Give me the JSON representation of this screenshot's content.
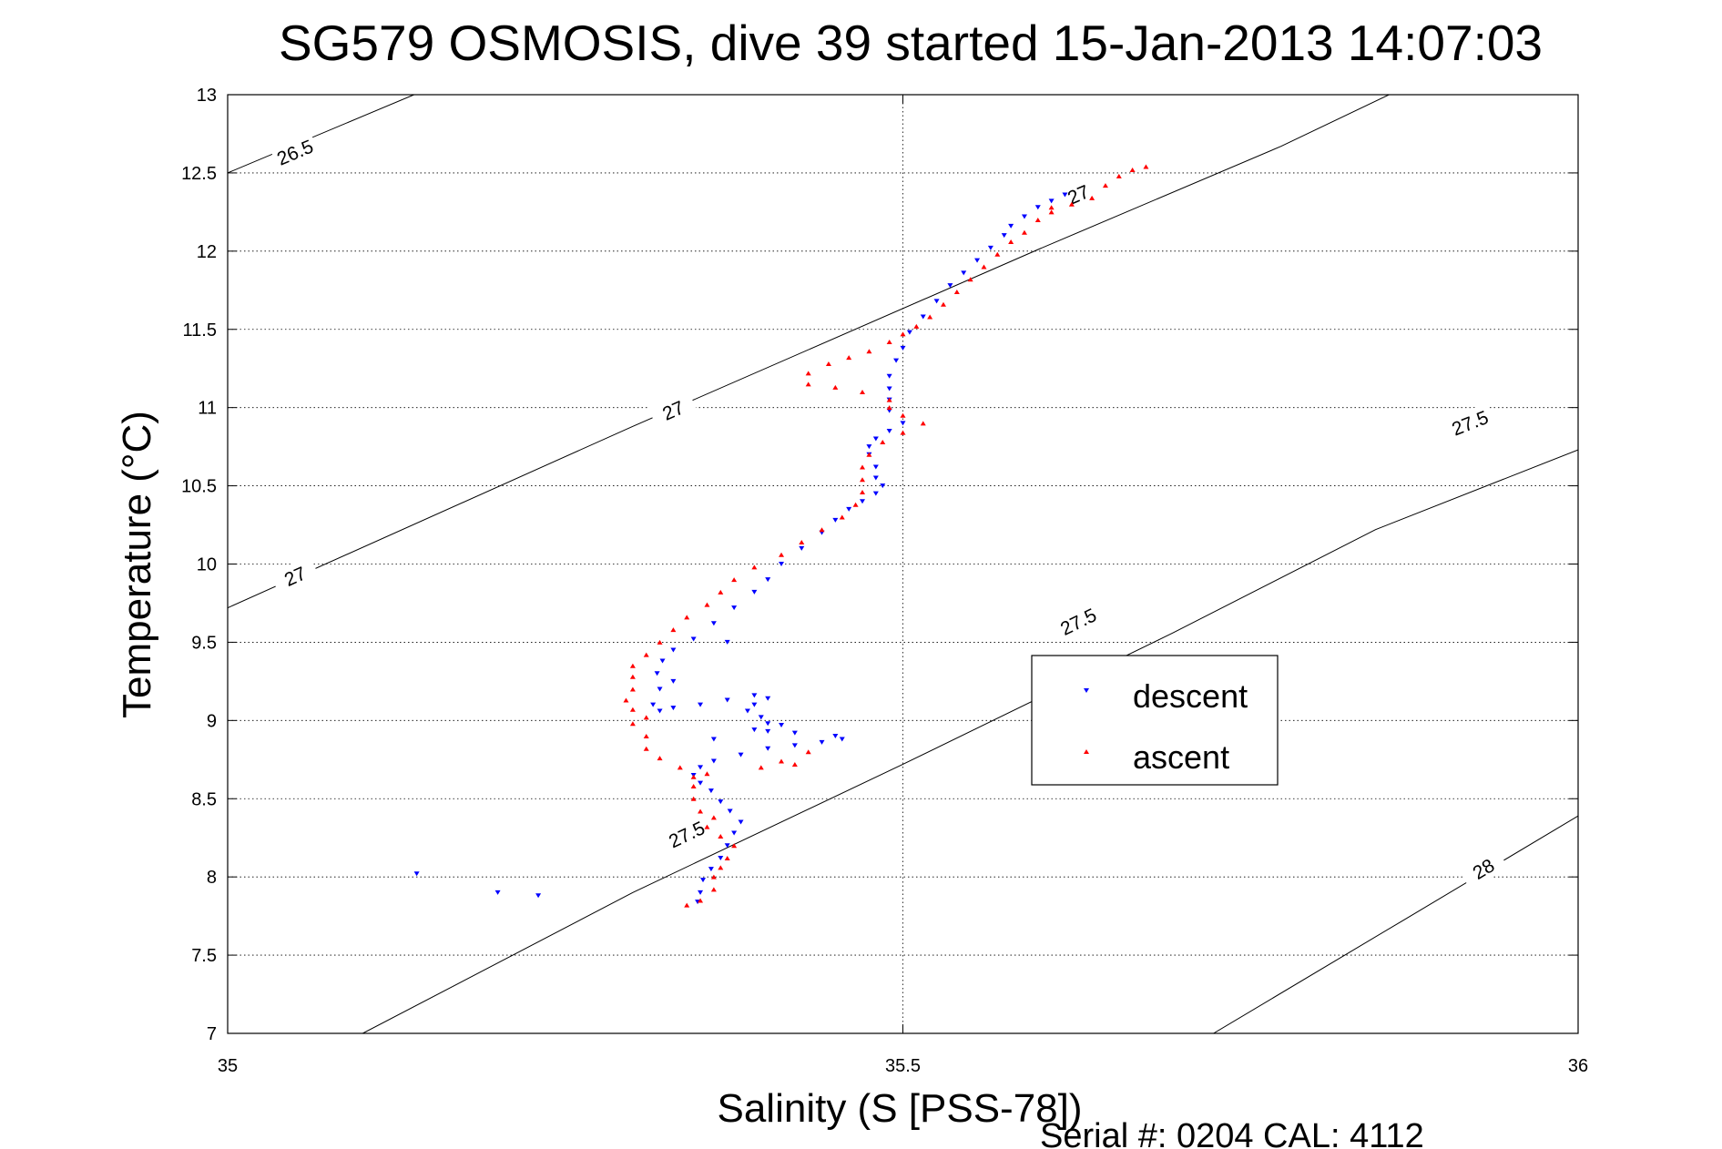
{
  "chart_data": {
    "type": "scatter",
    "title": "SG579 OSMOSIS, dive 39 started 15-Jan-2013 14:07:03",
    "xlabel": "Salinity (S [PSS-78])",
    "ylabel": "Temperature (°C)",
    "xlim": [
      35,
      36
    ],
    "ylim": [
      7,
      13
    ],
    "xticks": [
      35,
      35.5,
      36
    ],
    "xtick_labels": [
      "35",
      "35.5",
      "36"
    ],
    "yticks": [
      7,
      7.5,
      8,
      8.5,
      9,
      9.5,
      10,
      10.5,
      11,
      11.5,
      12,
      12.5,
      13
    ],
    "ytick_labels": [
      "7",
      "7.5",
      "8",
      "8.5",
      "9",
      "9.5",
      "10",
      "10.5",
      "11",
      "11.5",
      "12",
      "12.5",
      "13"
    ],
    "grid": true,
    "legend_position": "right",
    "footer": "Serial #: 0204  CAL: 4112",
    "contours": [
      {
        "label": "26.5",
        "points": [
          [
            35.0,
            12.5
          ],
          [
            35.138,
            13.0
          ]
        ],
        "labels": [
          {
            "text": "26.5",
            "x": 35.05,
            "y": 12.63
          }
        ]
      },
      {
        "label": "27",
        "points": [
          [
            35.0,
            9.72
          ],
          [
            35.3,
            10.88
          ],
          [
            35.6,
            12.01
          ],
          [
            35.78,
            12.67
          ],
          [
            35.86,
            13.0
          ]
        ],
        "labels": [
          {
            "text": "27",
            "x": 35.05,
            "y": 9.92
          },
          {
            "text": "27",
            "x": 35.33,
            "y": 10.98
          },
          {
            "text": "27",
            "x": 35.63,
            "y": 12.36
          }
        ]
      },
      {
        "label": "27.5",
        "points": [
          [
            35.1,
            7.0
          ],
          [
            35.3,
            7.9
          ],
          [
            35.5,
            8.72
          ],
          [
            35.7,
            9.56
          ],
          [
            35.85,
            10.22
          ],
          [
            36.0,
            10.73
          ]
        ],
        "labels": [
          {
            "text": "27.5",
            "x": 35.34,
            "y": 8.27
          },
          {
            "text": "27.5",
            "x": 35.63,
            "y": 9.63
          },
          {
            "text": "27.5",
            "x": 35.92,
            "y": 10.9
          }
        ]
      },
      {
        "label": "28",
        "points": [
          [
            35.73,
            7.0
          ],
          [
            35.87,
            7.72
          ],
          [
            36.0,
            8.39
          ]
        ],
        "labels": [
          {
            "text": "28",
            "x": 35.93,
            "y": 8.05
          }
        ]
      }
    ],
    "series": [
      {
        "name": "descent",
        "color": "#0000ff",
        "marker": "triangle-down",
        "points": [
          [
            35.348,
            7.84
          ],
          [
            35.35,
            7.9
          ],
          [
            35.352,
            7.98
          ],
          [
            35.358,
            8.05
          ],
          [
            35.365,
            8.12
          ],
          [
            35.37,
            8.2
          ],
          [
            35.375,
            8.28
          ],
          [
            35.38,
            8.35
          ],
          [
            35.372,
            8.42
          ],
          [
            35.365,
            8.48
          ],
          [
            35.358,
            8.55
          ],
          [
            35.35,
            8.6
          ],
          [
            35.345,
            8.65
          ],
          [
            35.35,
            8.7
          ],
          [
            35.36,
            8.74
          ],
          [
            35.38,
            8.78
          ],
          [
            35.4,
            8.82
          ],
          [
            35.42,
            8.84
          ],
          [
            35.44,
            8.86
          ],
          [
            35.455,
            8.88
          ],
          [
            35.45,
            8.9
          ],
          [
            35.42,
            8.92
          ],
          [
            35.4,
            8.93
          ],
          [
            35.39,
            8.94
          ],
          [
            35.4,
            8.98
          ],
          [
            35.395,
            9.02
          ],
          [
            35.385,
            9.06
          ],
          [
            35.39,
            9.1
          ],
          [
            35.4,
            9.14
          ],
          [
            35.39,
            9.16
          ],
          [
            35.37,
            9.13
          ],
          [
            35.35,
            9.1
          ],
          [
            35.33,
            9.08
          ],
          [
            35.32,
            9.06
          ],
          [
            35.315,
            9.1
          ],
          [
            35.32,
            9.2
          ],
          [
            35.318,
            9.3
          ],
          [
            35.322,
            9.38
          ],
          [
            35.33,
            9.45
          ],
          [
            35.345,
            9.52
          ],
          [
            35.36,
            9.62
          ],
          [
            35.375,
            9.72
          ],
          [
            35.39,
            9.82
          ],
          [
            35.4,
            9.9
          ],
          [
            35.41,
            10.0
          ],
          [
            35.425,
            10.1
          ],
          [
            35.44,
            10.2
          ],
          [
            35.45,
            10.28
          ],
          [
            35.46,
            10.35
          ],
          [
            35.47,
            10.4
          ],
          [
            35.48,
            10.45
          ],
          [
            35.485,
            10.5
          ],
          [
            35.48,
            10.55
          ],
          [
            35.48,
            10.62
          ],
          [
            35.475,
            10.7
          ],
          [
            35.475,
            10.75
          ],
          [
            35.48,
            10.8
          ],
          [
            35.49,
            10.85
          ],
          [
            35.5,
            10.9
          ],
          [
            35.49,
            10.98
          ],
          [
            35.49,
            11.05
          ],
          [
            35.49,
            11.12
          ],
          [
            35.49,
            11.2
          ],
          [
            35.495,
            11.3
          ],
          [
            35.5,
            11.38
          ],
          [
            35.505,
            11.48
          ],
          [
            35.515,
            11.58
          ],
          [
            35.525,
            11.68
          ],
          [
            35.535,
            11.78
          ],
          [
            35.545,
            11.86
          ],
          [
            35.555,
            11.94
          ],
          [
            35.565,
            12.02
          ],
          [
            35.575,
            12.1
          ],
          [
            35.58,
            12.16
          ],
          [
            35.59,
            12.22
          ],
          [
            35.6,
            12.28
          ],
          [
            35.61,
            12.32
          ],
          [
            35.62,
            12.36
          ],
          [
            35.2,
            7.9
          ],
          [
            35.23,
            7.88
          ],
          [
            35.14,
            8.02
          ],
          [
            35.37,
            9.5
          ],
          [
            35.33,
            9.25
          ],
          [
            35.41,
            8.97
          ],
          [
            35.36,
            8.88
          ]
        ]
      },
      {
        "name": "ascent",
        "color": "#ff0000",
        "marker": "triangle-up",
        "points": [
          [
            35.34,
            7.82
          ],
          [
            35.35,
            7.85
          ],
          [
            35.36,
            7.92
          ],
          [
            35.36,
            8.0
          ],
          [
            35.365,
            8.06
          ],
          [
            35.37,
            8.12
          ],
          [
            35.375,
            8.2
          ],
          [
            35.365,
            8.26
          ],
          [
            35.355,
            8.32
          ],
          [
            35.36,
            8.38
          ],
          [
            35.35,
            8.42
          ],
          [
            35.345,
            8.5
          ],
          [
            35.345,
            8.58
          ],
          [
            35.345,
            8.64
          ],
          [
            35.335,
            8.7
          ],
          [
            35.32,
            8.76
          ],
          [
            35.31,
            8.82
          ],
          [
            35.31,
            8.9
          ],
          [
            35.3,
            8.98
          ],
          [
            35.31,
            9.02
          ],
          [
            35.3,
            9.07
          ],
          [
            35.295,
            9.13
          ],
          [
            35.3,
            9.2
          ],
          [
            35.3,
            9.28
          ],
          [
            35.3,
            9.35
          ],
          [
            35.31,
            9.42
          ],
          [
            35.32,
            9.5
          ],
          [
            35.33,
            9.58
          ],
          [
            35.34,
            9.66
          ],
          [
            35.355,
            9.74
          ],
          [
            35.365,
            9.82
          ],
          [
            35.375,
            9.9
          ],
          [
            35.39,
            9.98
          ],
          [
            35.41,
            10.06
          ],
          [
            35.425,
            10.14
          ],
          [
            35.44,
            10.22
          ],
          [
            35.455,
            10.3
          ],
          [
            35.465,
            10.38
          ],
          [
            35.47,
            10.46
          ],
          [
            35.47,
            10.54
          ],
          [
            35.47,
            10.62
          ],
          [
            35.475,
            10.7
          ],
          [
            35.485,
            10.78
          ],
          [
            35.5,
            10.84
          ],
          [
            35.515,
            10.9
          ],
          [
            35.5,
            10.95
          ],
          [
            35.49,
            11.0
          ],
          [
            35.49,
            11.05
          ],
          [
            35.47,
            11.1
          ],
          [
            35.45,
            11.13
          ],
          [
            35.43,
            11.15
          ],
          [
            35.43,
            11.22
          ],
          [
            35.445,
            11.28
          ],
          [
            35.46,
            11.32
          ],
          [
            35.475,
            11.36
          ],
          [
            35.49,
            11.42
          ],
          [
            35.5,
            11.47
          ],
          [
            35.51,
            11.52
          ],
          [
            35.52,
            11.58
          ],
          [
            35.53,
            11.66
          ],
          [
            35.54,
            11.74
          ],
          [
            35.55,
            11.82
          ],
          [
            35.56,
            11.9
          ],
          [
            35.57,
            11.98
          ],
          [
            35.58,
            12.06
          ],
          [
            35.59,
            12.12
          ],
          [
            35.6,
            12.2
          ],
          [
            35.61,
            12.25
          ],
          [
            35.625,
            12.3
          ],
          [
            35.64,
            12.34
          ],
          [
            35.65,
            12.42
          ],
          [
            35.66,
            12.48
          ],
          [
            35.67,
            12.52
          ],
          [
            35.68,
            12.54
          ],
          [
            35.61,
            12.28
          ],
          [
            35.395,
            8.7
          ],
          [
            35.41,
            8.74
          ],
          [
            35.43,
            8.8
          ],
          [
            35.42,
            8.72
          ],
          [
            35.355,
            8.66
          ]
        ]
      }
    ]
  }
}
